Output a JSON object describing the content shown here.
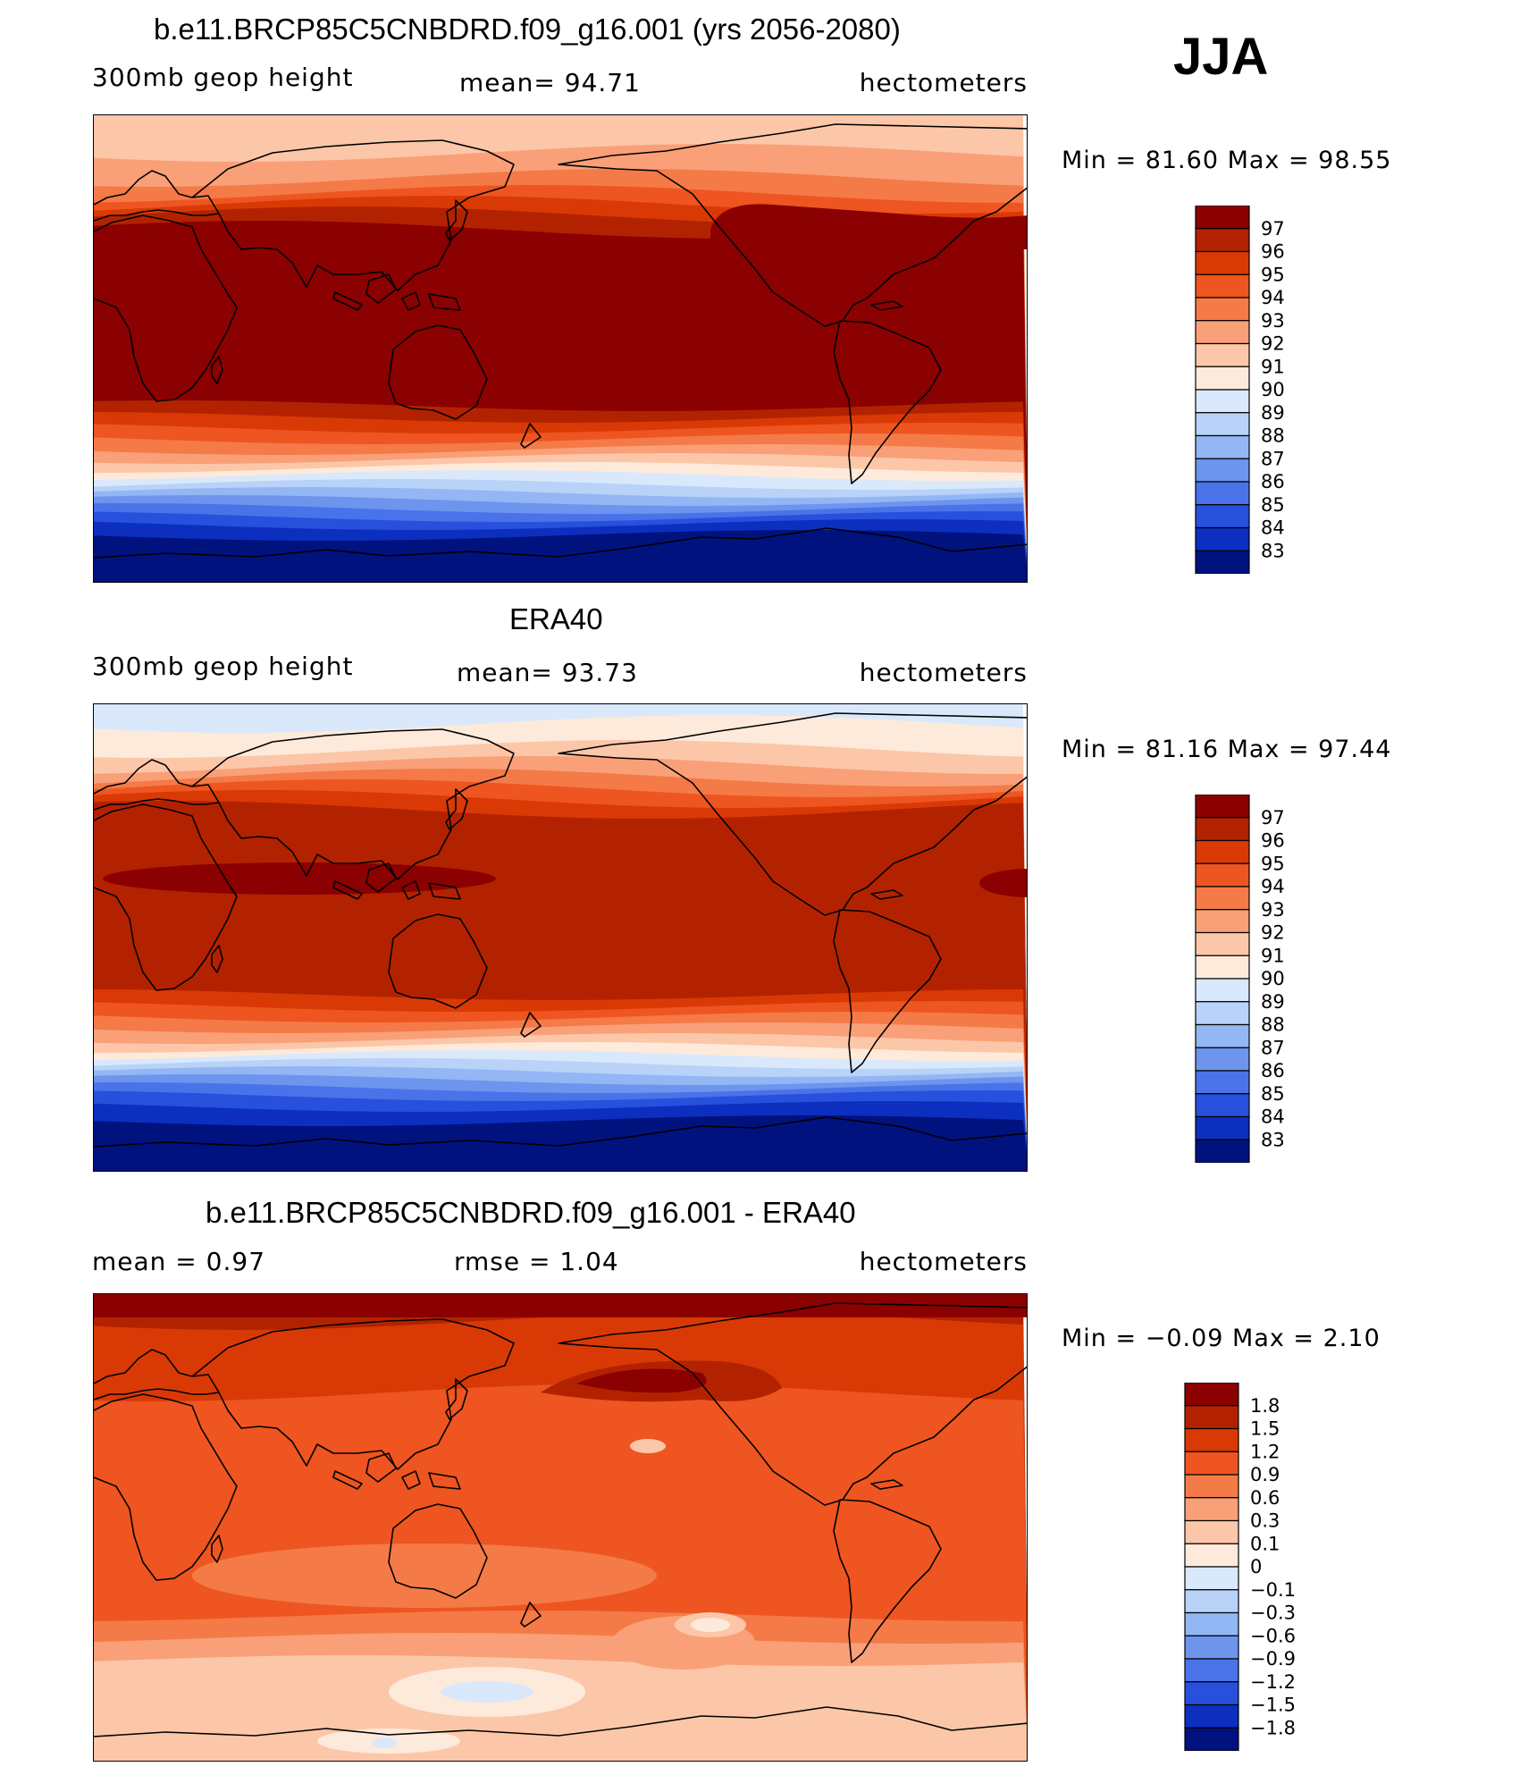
{
  "season": "JJA",
  "panels": [
    {
      "title": "b.e11.BRCP85C5CNBDRD.f09_g16.001 (yrs 2056-2080)",
      "left_label": "300mb  geop  height",
      "middle_label": "mean=   94.71",
      "right_label": "hectometers",
      "minmax": "Min  =   81.60  Max  =   98.55",
      "colorbar": {
        "labels": [
          "97",
          "96",
          "95",
          "94",
          "93",
          "92",
          "91",
          "90",
          "89",
          "88",
          "87",
          "86",
          "85",
          "84",
          "83"
        ],
        "colors": [
          "#8b0000",
          "#b32200",
          "#d93a05",
          "#ee5520",
          "#f47a48",
          "#f9a078",
          "#fcc7a8",
          "#feeadb",
          "#d9e9fb",
          "#b8d2f8",
          "#93b6f4",
          "#6d95ee",
          "#4a73ea",
          "#2750dc",
          "#0c2fc0",
          "#00127e"
        ]
      },
      "map": {
        "kind": "field",
        "bands": [
          {
            "y": 0,
            "color": "#fcc7a8"
          },
          {
            "y": 42,
            "color": "#f9a078"
          },
          {
            "y": 70,
            "color": "#f47a48"
          },
          {
            "y": 88,
            "color": "#ee5520"
          },
          {
            "y": 100,
            "color": "#d93a05"
          },
          {
            "y": 112,
            "color": "#b32200"
          },
          {
            "y": 128,
            "color": "#8b0000"
          },
          {
            "y": 325,
            "color": "#b32200"
          },
          {
            "y": 338,
            "color": "#d93a05"
          },
          {
            "y": 350,
            "color": "#ee5520"
          },
          {
            "y": 362,
            "color": "#f47a48"
          },
          {
            "y": 374,
            "color": "#f9a078"
          },
          {
            "y": 384,
            "color": "#fcc7a8"
          },
          {
            "y": 394,
            "color": "#feeadb"
          },
          {
            "y": 403,
            "color": "#d9e9fb"
          },
          {
            "y": 413,
            "color": "#b8d2f8"
          },
          {
            "y": 422,
            "color": "#93b6f4"
          },
          {
            "y": 431,
            "color": "#6d95ee"
          },
          {
            "y": 440,
            "color": "#4a73ea"
          },
          {
            "y": 449,
            "color": "#2750dc"
          },
          {
            "y": 458,
            "color": "#0c2fc0"
          },
          {
            "y": 470,
            "color": "#00127e"
          }
        ]
      }
    },
    {
      "title": "ERA40",
      "left_label": "300mb  geop  height",
      "middle_label": "mean=   93.73",
      "right_label": "hectometers",
      "minmax": "Min  =   81.16  Max  =   97.44",
      "colorbar": {
        "labels": [
          "97",
          "96",
          "95",
          "94",
          "93",
          "92",
          "91",
          "90",
          "89",
          "88",
          "87",
          "86",
          "85",
          "84",
          "83"
        ],
        "colors": [
          "#8b0000",
          "#b32200",
          "#d93a05",
          "#ee5520",
          "#f47a48",
          "#f9a078",
          "#fcc7a8",
          "#feeadb",
          "#d9e9fb",
          "#b8d2f8",
          "#93b6f4",
          "#6d95ee",
          "#4a73ea",
          "#2750dc",
          "#0c2fc0",
          "#00127e"
        ]
      },
      "map": {
        "kind": "field",
        "bands": [
          {
            "y": 0,
            "color": "#d9e9fb"
          },
          {
            "y": 22,
            "color": "#feeadb"
          },
          {
            "y": 50,
            "color": "#fcc7a8"
          },
          {
            "y": 68,
            "color": "#f9a078"
          },
          {
            "y": 82,
            "color": "#f47a48"
          },
          {
            "y": 94,
            "color": "#ee5520"
          },
          {
            "y": 106,
            "color": "#d93a05"
          },
          {
            "y": 118,
            "color": "#b32200"
          },
          {
            "y": 325,
            "color": "#d93a05"
          },
          {
            "y": 338,
            "color": "#ee5520"
          },
          {
            "y": 350,
            "color": "#f47a48"
          },
          {
            "y": 362,
            "color": "#f9a078"
          },
          {
            "y": 374,
            "color": "#fcc7a8"
          },
          {
            "y": 384,
            "color": "#feeadb"
          },
          {
            "y": 393,
            "color": "#d9e9fb"
          },
          {
            "y": 402,
            "color": "#b8d2f8"
          },
          {
            "y": 411,
            "color": "#93b6f4"
          },
          {
            "y": 420,
            "color": "#6d95ee"
          },
          {
            "y": 429,
            "color": "#4a73ea"
          },
          {
            "y": 438,
            "color": "#2750dc"
          },
          {
            "y": 450,
            "color": "#0c2fc0"
          },
          {
            "y": 466,
            "color": "#00127e"
          }
        ]
      }
    },
    {
      "title": "b.e11.BRCP85C5CNBDRD.f09_g16.001 - ERA40",
      "left_label": "mean  =     0.97",
      "middle_label": "rmse  =     1.04",
      "right_label": "hectometers",
      "minmax": "Min  =   −0.09  Max  =     2.10",
      "colorbar": {
        "labels": [
          "1.8",
          "1.5",
          "1.2",
          "0.9",
          "0.6",
          "0.3",
          "0.1",
          "0",
          "−0.1",
          "−0.3",
          "−0.6",
          "−0.9",
          "−1.2",
          "−1.5",
          "−1.8"
        ],
        "colors": [
          "#8b0000",
          "#b32200",
          "#d93a05",
          "#ee5520",
          "#f47a48",
          "#f9a078",
          "#fcc7a8",
          "#feeadb",
          "#d9e9fb",
          "#b8d2f8",
          "#93b6f4",
          "#6d95ee",
          "#4a73ea",
          "#2750dc",
          "#0c2fc0",
          "#00127e"
        ]
      },
      "map": {
        "kind": "diff",
        "bands": [
          {
            "y": 0,
            "color": "#b32200"
          },
          {
            "y": 30,
            "color": "#d93a05"
          },
          {
            "y": 110,
            "color": "#ee5520"
          },
          {
            "y": 360,
            "color": "#f47a48"
          },
          {
            "y": 385,
            "color": "#f9a078"
          },
          {
            "y": 410,
            "color": "#fcc7a8"
          }
        ]
      }
    }
  ]
}
